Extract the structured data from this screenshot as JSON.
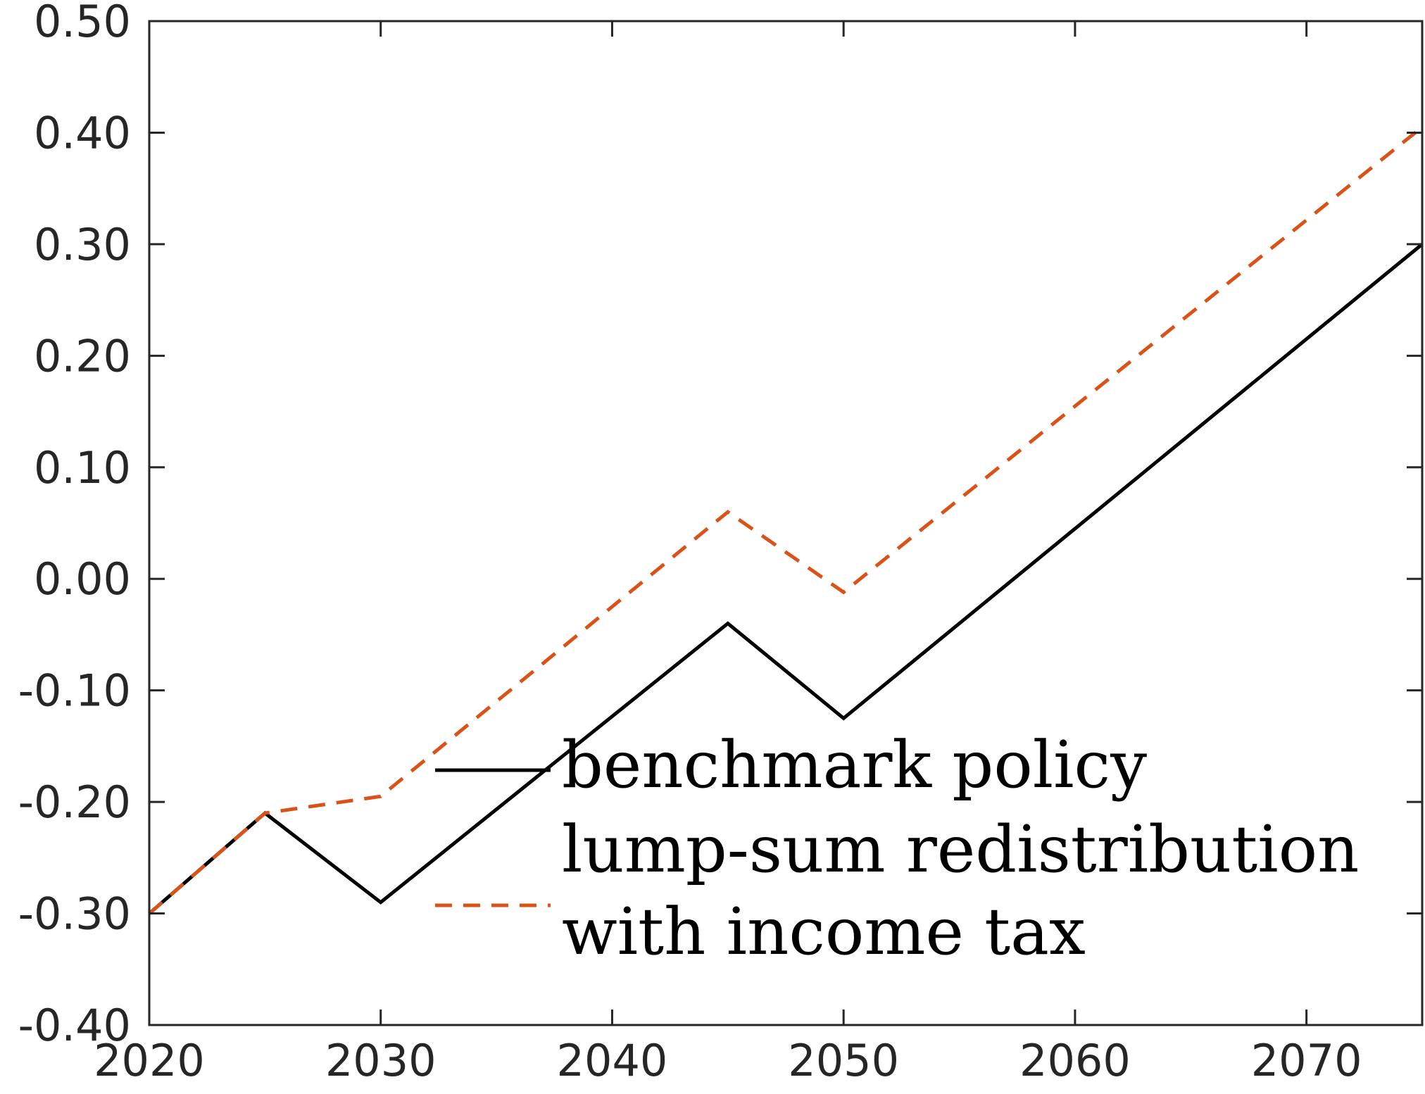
{
  "chart_data": {
    "type": "line",
    "title": "",
    "xlabel": "",
    "ylabel": "",
    "xlim": [
      2020,
      2075
    ],
    "ylim": [
      -0.4,
      0.5
    ],
    "xticks": [
      2020,
      2030,
      2040,
      2050,
      2060,
      2070
    ],
    "xtick_labels": [
      "2020",
      "2030",
      "2040",
      "2050",
      "2060",
      "2070"
    ],
    "yticks": [
      -0.4,
      -0.3,
      -0.2,
      -0.1,
      0.0,
      0.1,
      0.2,
      0.3,
      0.4,
      0.5
    ],
    "ytick_labels": [
      "-0.40",
      "-0.30",
      "-0.20",
      "-0.10",
      "0.00",
      "0.10",
      "0.20",
      "0.30",
      "0.40",
      "0.50"
    ],
    "grid": false,
    "legend_position": "lower-center",
    "series": [
      {
        "name": "benchmark policy",
        "color": "#000000",
        "style": "solid",
        "x": [
          2020,
          2025,
          2030,
          2045,
          2050,
          2075
        ],
        "y": [
          -0.3,
          -0.21,
          -0.29,
          -0.04,
          -0.125,
          0.3
        ]
      },
      {
        "name": "lump-sum redistribution",
        "color": "#000000",
        "style": "none",
        "x": [],
        "y": []
      },
      {
        "name": "with income tax",
        "color": "#d95319",
        "style": "dashed",
        "x": [
          2020,
          2025,
          2030,
          2045,
          2050,
          2075
        ],
        "y": [
          -0.3,
          -0.21,
          -0.195,
          0.06,
          -0.012,
          0.405
        ]
      }
    ]
  }
}
